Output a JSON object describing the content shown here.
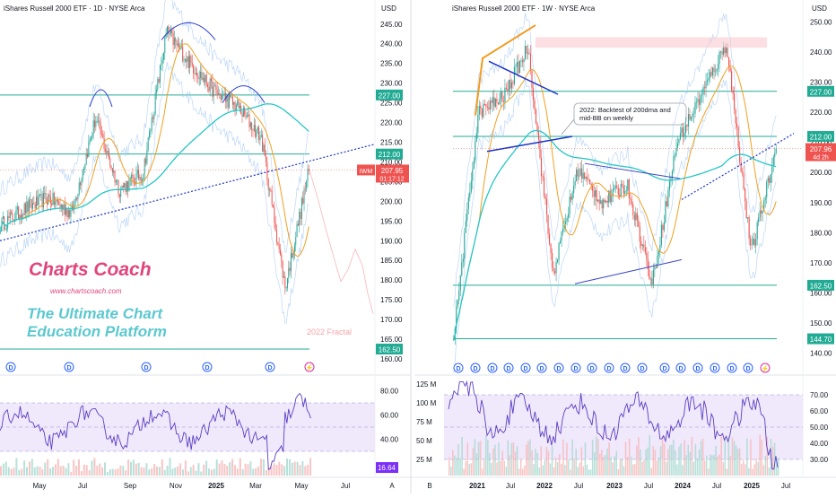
{
  "left_panel": {
    "title": "iShares Russell 2000 ETF · 1D · NYSE Arca",
    "currency": "USD",
    "price_ticks": [
      "245.00",
      "240.00",
      "235.00",
      "230.00",
      "225.00",
      "220.00",
      "215.00",
      "210.00",
      "205.00",
      "200.00",
      "195.00",
      "190.00",
      "185.00",
      "180.00",
      "175.00",
      "170.00",
      "165.00",
      "160.00"
    ],
    "level_badges": [
      "227.00",
      "212.00",
      "162.50"
    ],
    "last_price": {
      "symbol": "IWM",
      "price": "207.95",
      "timer": "01:17:12"
    },
    "brand": {
      "name": "Charts Coach",
      "url": "www.chartscoach.com",
      "tagline_1": "The Ultimate Chart",
      "tagline_2": "Education Platform"
    },
    "fractal_label": "2022 Fractal",
    "event_badges": [
      "D",
      "D",
      "D",
      "D",
      "D",
      "D"
    ],
    "lower_ticks": [
      "80.00",
      "60.00",
      "40.00"
    ],
    "lower_value": "16.64",
    "time_labels": [
      "May",
      "Jul",
      "Sep",
      "Nov",
      "2025",
      "Mar",
      "May",
      "Jul",
      "A"
    ]
  },
  "right_panel": {
    "title": "iShares Russell 2000 ETF · 1W · NYSE Arca",
    "currency": "USD",
    "price_ticks": [
      "250.00",
      "240.00",
      "230.00",
      "220.00",
      "210.00",
      "200.00",
      "190.00",
      "180.00",
      "170.00",
      "160.00",
      "150.00",
      "140.00"
    ],
    "level_badges": [
      "227.00",
      "212.00",
      "162.50",
      "144.70"
    ],
    "last_price": {
      "price": "207.96",
      "timer": "4d 2h"
    },
    "annotation": "2022: Backtest of 200dma and mid-BB on weekly",
    "event_badges": [
      "D",
      "D",
      "D",
      "D",
      "D",
      "D",
      "D",
      "D",
      "D",
      "D",
      "D",
      "D",
      "D",
      "D",
      "D",
      "D",
      "D",
      "D"
    ],
    "volume_ticks": [
      "125 M",
      "100 M",
      "75 M",
      "50 M",
      "25 M"
    ],
    "lower_ticks": [
      "70.00",
      "60.00",
      "50.00",
      "40.00",
      "30.00"
    ],
    "time_labels": [
      "B",
      "2021",
      "Jul",
      "2022",
      "Jul",
      "2023",
      "Jul",
      "2024",
      "Jul",
      "2025",
      "Jul"
    ]
  },
  "colors": {
    "level_line": "#22ab94",
    "ma_short": "#f0a020",
    "ma_long": "#26c6c6",
    "up": "#26a69a",
    "down": "#ef5350",
    "brand_pink": "#e0457b",
    "brand_teal": "#5cc8cf",
    "trend_blue": "#1a33c8",
    "rsi_line": "#5b3fc4",
    "rsi_band": "#e9defa"
  },
  "chart_data": [
    {
      "type": "line",
      "title": "iShares Russell 2000 ETF · 1D · NYSE Arca",
      "x": [
        "2024-04",
        "2024-05",
        "2024-06",
        "2024-07",
        "2024-08",
        "2024-09",
        "2024-10",
        "2024-11",
        "2024-12",
        "2025-01",
        "2025-02",
        "2025-03",
        "2025-04",
        "2025-05"
      ],
      "series": [
        {
          "values": [
            194,
            198,
            201,
            197,
            221,
            203,
            207,
            243,
            235,
            228,
            224,
            216,
            178,
            207.95
          ]
        }
      ],
      "levels": [
        227,
        212,
        162.5
      ],
      "ylim": [
        160,
        247
      ]
    },
    {
      "type": "line",
      "title": "iShares Russell 2000 ETF · 1W · NYSE Arca",
      "x": [
        "2020-10",
        "2021-01",
        "2021-07",
        "2021-11",
        "2022-06",
        "2022-08",
        "2023-01",
        "2023-07",
        "2023-10",
        "2024-03",
        "2024-07",
        "2024-11",
        "2025-04",
        "2025-05"
      ],
      "series": [
        {
          "values": [
            145,
            220,
            225,
            242,
            166,
            201,
            190,
            196,
            163,
            210,
            226,
            243,
            173,
            207.96
          ]
        }
      ],
      "levels": [
        227,
        212,
        162.5,
        144.7
      ],
      "ylim": [
        138,
        252
      ]
    }
  ]
}
